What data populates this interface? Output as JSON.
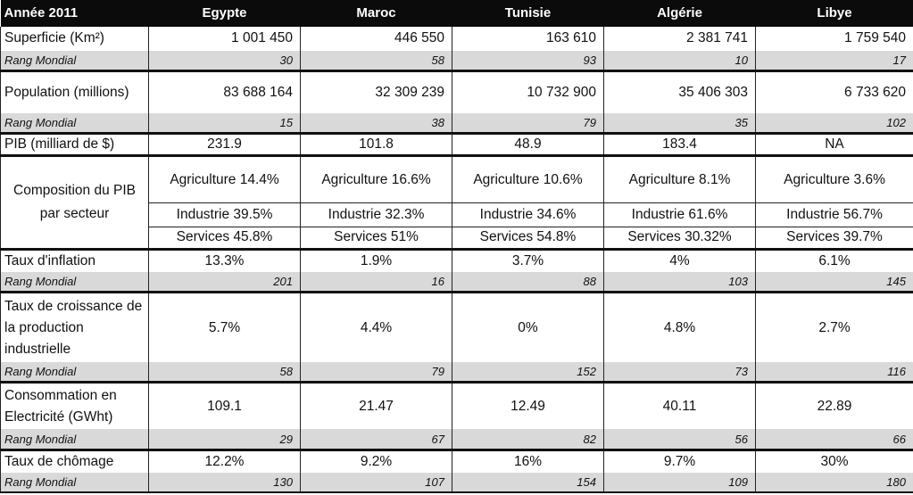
{
  "header": {
    "year": "Année 2011",
    "countries": [
      "Egypte",
      "Maroc",
      "Tunisie",
      "Algérie",
      "Libye"
    ]
  },
  "rows": {
    "superficie": {
      "label": "Superficie (Km²)",
      "values": [
        "1 001 450",
        "446 550",
        "163 610",
        "2 381 741",
        "1 759 540"
      ]
    },
    "superficie_rank": {
      "label": "Rang Mondial",
      "values": [
        "30",
        "58",
        "93",
        "10",
        "17"
      ]
    },
    "population": {
      "label": "Population (millions)",
      "values": [
        "83 688 164",
        "32 309 239",
        "10 732 900",
        "35 406 303",
        "6 733 620"
      ]
    },
    "population_rank": {
      "label": "Rang Mondial",
      "values": [
        "15",
        "38",
        "79",
        "35",
        "102"
      ]
    },
    "pib": {
      "label": "PIB (milliard de $)",
      "values": [
        "231.9",
        "101.8",
        "48.9",
        "183.4",
        "NA"
      ]
    },
    "composition": {
      "label": "Composition du PIB par secteur",
      "agriculture": [
        "Agriculture 14.4%",
        "Agriculture 16.6%",
        "Agriculture 10.6%",
        "Agriculture 8.1%",
        "Agriculture 3.6%"
      ],
      "industrie": [
        "Industrie 39.5%",
        "Industrie 32.3%",
        "Industrie 34.6%",
        "Industrie 61.6%",
        "Industrie 56.7%"
      ],
      "services": [
        "Services 45.8%",
        "Services 51%",
        "Services 54.8%",
        "Services 30.32%",
        "Services 39.7%"
      ]
    },
    "inflation": {
      "label": "Taux d'inflation",
      "values": [
        "13.3%",
        "1.9%",
        "3.7%",
        "4%",
        "6.1%"
      ]
    },
    "inflation_rank": {
      "label": "Rang Mondial",
      "values": [
        "201",
        "16",
        "88",
        "103",
        "145"
      ]
    },
    "croissance": {
      "label": "Taux de croissance de la production industrielle",
      "values": [
        "5.7%",
        "4.4%",
        "0%",
        "4.8%",
        "2.7%"
      ]
    },
    "croissance_rank": {
      "label": "Rang Mondial",
      "values": [
        "58",
        "79",
        "152",
        "73",
        "116"
      ]
    },
    "electricite": {
      "label": "Consommation en Electricité (GWht)",
      "values": [
        "109.1",
        "21.47",
        "12.49",
        "40.11",
        "22.89"
      ]
    },
    "electricite_rank": {
      "label": "Rang Mondial",
      "values": [
        "29",
        "67",
        "82",
        "56",
        "66"
      ]
    },
    "chomage": {
      "label": "Taux de chômage",
      "values": [
        "12.2%",
        "9.2%",
        "16%",
        "9.7%",
        "30%"
      ]
    },
    "chomage_rank": {
      "label": "Rang Mondial",
      "values": [
        "130",
        "107",
        "154",
        "109",
        "180"
      ]
    }
  }
}
